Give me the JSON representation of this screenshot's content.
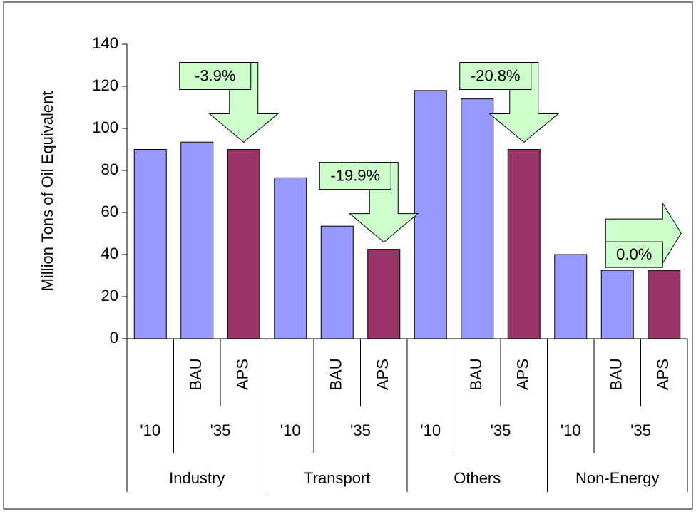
{
  "chart_data": {
    "type": "bar",
    "ylabel": "Million Tons of Oil Equivalent",
    "categories": [
      null,
      "BAU",
      "APS",
      null,
      "BAU",
      "APS",
      null,
      "BAU",
      "APS",
      null,
      "BAU",
      "APS"
    ],
    "values": [
      90,
      93.5,
      90,
      76.5,
      53.5,
      42.5,
      118,
      114,
      90,
      40,
      32.5,
      32.5
    ],
    "colors": [
      "#9999ff",
      "#9999ff",
      "#993366",
      "#9999ff",
      "#9999ff",
      "#993366",
      "#9999ff",
      "#9999ff",
      "#993366",
      "#9999ff",
      "#9999ff",
      "#993366"
    ],
    "groups": [
      {
        "name": "Industry",
        "periods": [
          "'10",
          "'35"
        ],
        "change": "-3.9%",
        "arrow": "down"
      },
      {
        "name": "Transport",
        "periods": [
          "'10",
          "'35"
        ],
        "change": "-19.9%",
        "arrow": "down"
      },
      {
        "name": "Others",
        "periods": [
          "'10",
          "'35"
        ],
        "change": "-20.8%",
        "arrow": "down"
      },
      {
        "name": "Non-Energy",
        "periods": [
          "'10",
          "'35"
        ],
        "change": "0.0%",
        "arrow": "right"
      }
    ],
    "annotation_color": "#ccffcc",
    "ylim": [
      0,
      140
    ],
    "yticks": [
      0,
      20,
      40,
      60,
      80,
      100,
      120,
      140
    ]
  }
}
